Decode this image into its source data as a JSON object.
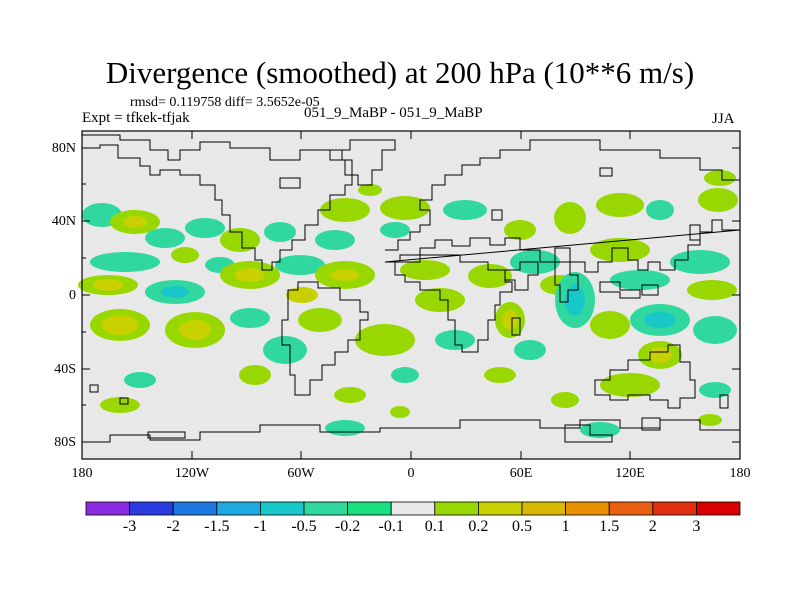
{
  "title": "Divergence (smoothed) at 200 hPa (10**6 m/s)",
  "stats_line": "rmsd= 0.119758 diff= 3.5652e-05",
  "experiment_line": "Expt = tfkek-tfjak",
  "runs_line": "051_9_MaBP - 051_9_MaBP",
  "season": "JJA",
  "lat_labels": [
    "80N",
    "40N",
    "0",
    "40S",
    "80S"
  ],
  "lon_labels": [
    "180",
    "120W",
    "60W",
    "0",
    "60E",
    "120E",
    "180"
  ],
  "colorbar": {
    "labels": [
      "-3",
      "-2",
      "-1.5",
      "-1",
      "-0.5",
      "-0.2",
      "-0.1",
      "0.1",
      "0.2",
      "0.5",
      "1",
      "1.5",
      "2",
      "3"
    ],
    "colors": [
      "#8a2be2",
      "#2a3ce0",
      "#1a78e0",
      "#20a8e0",
      "#18c8c8",
      "#30d8a0",
      "#18e080",
      "#e8e8e8",
      "#98d800",
      "#c8d000",
      "#d8b800",
      "#e89000",
      "#e86010",
      "#e03010",
      "#d80000"
    ]
  },
  "anomaly_colors": {
    "neutral_background": "#e8e8e8",
    "neg_light": "#30d8a0",
    "neg_mid": "#18c8c8",
    "pos_light": "#98d800",
    "pos_mid": "#c8d000"
  }
}
